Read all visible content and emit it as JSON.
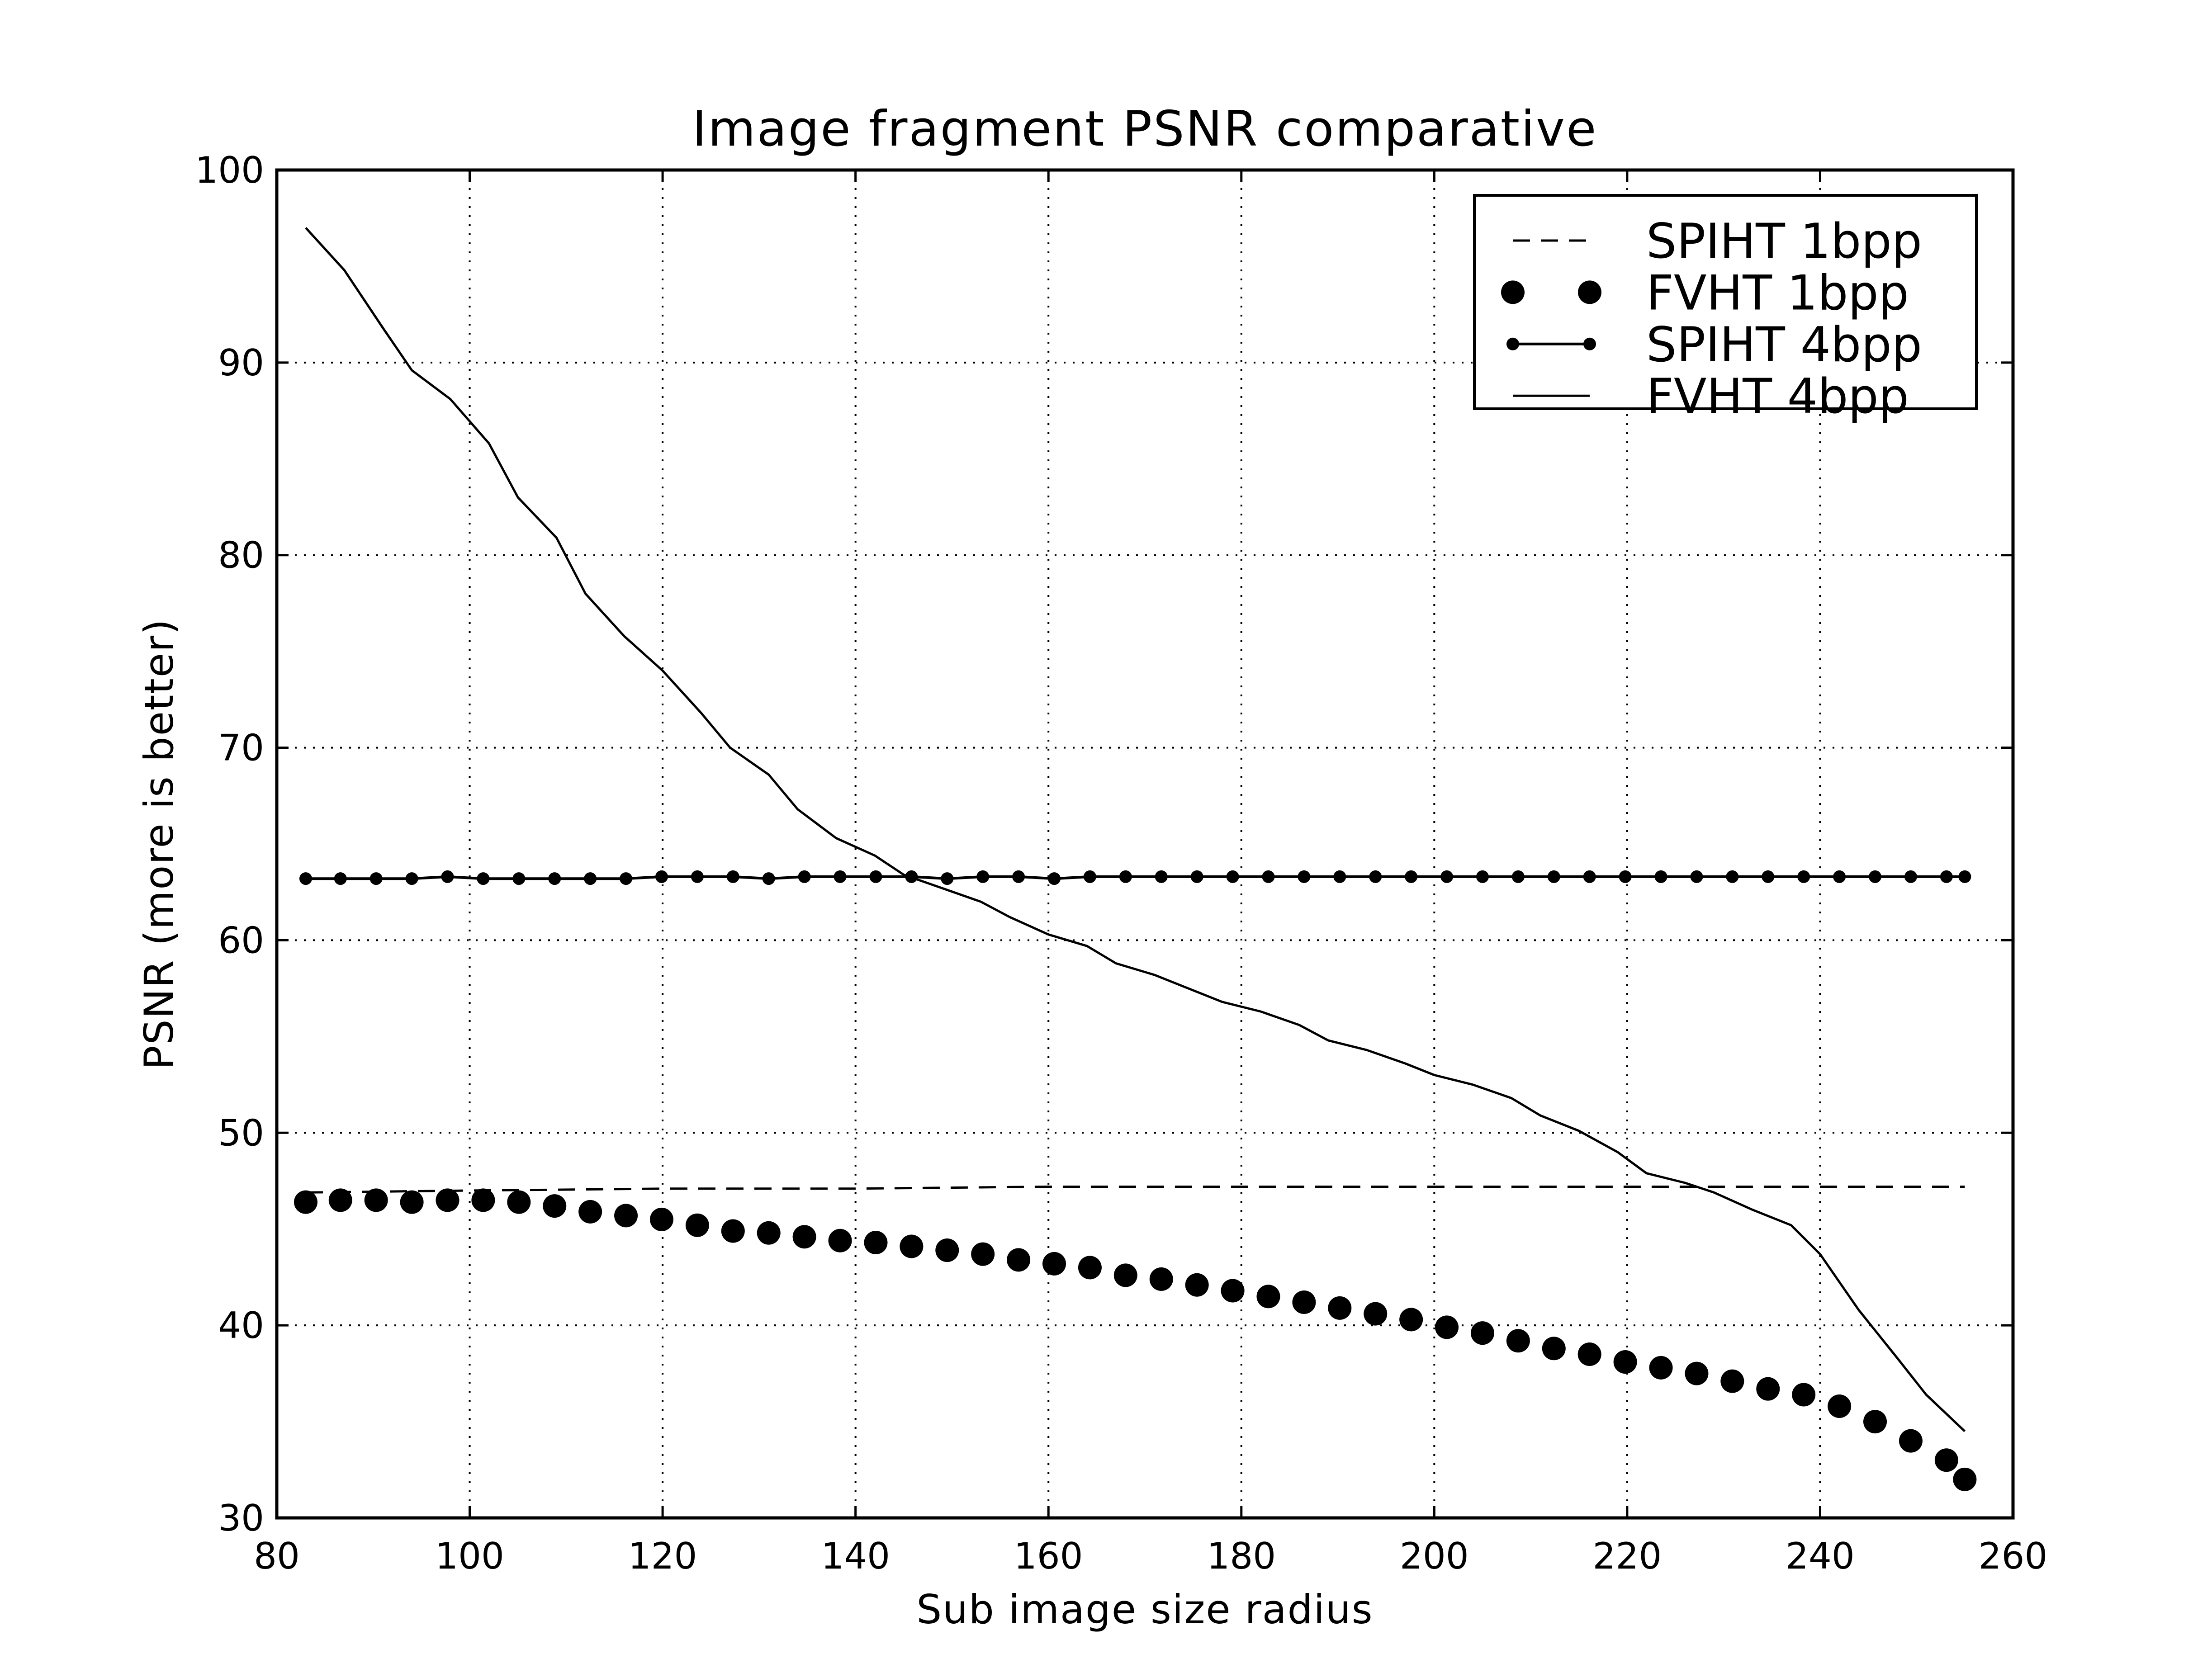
{
  "chart_data": {
    "type": "line",
    "title": "Image fragment PSNR comparative",
    "xlabel": "Sub image size radius",
    "ylabel": "PSNR (more is better)",
    "xlim": [
      80,
      260
    ],
    "ylim": [
      30,
      100
    ],
    "xticks": [
      80,
      100,
      120,
      140,
      160,
      180,
      200,
      220,
      240,
      260
    ],
    "yticks": [
      30,
      40,
      50,
      60,
      70,
      80,
      90,
      100
    ],
    "grid": true,
    "legend_position": "top-right",
    "series": [
      {
        "name": "SPIHT 1bpp",
        "style": "dashed",
        "x": [
          83,
          100,
          120,
          140,
          160,
          180,
          200,
          220,
          240,
          255
        ],
        "y": [
          46.9,
          47.0,
          47.1,
          47.1,
          47.2,
          47.2,
          47.2,
          47.2,
          47.2,
          47.2
        ]
      },
      {
        "name": "FVHT 1bpp",
        "style": "dots",
        "x": [
          83,
          86.6,
          90.3,
          94,
          97.7,
          101.4,
          105.1,
          108.8,
          112.5,
          116.2,
          119.9,
          123.6,
          127.3,
          131,
          134.7,
          138.4,
          142.1,
          145.8,
          149.5,
          153.2,
          156.9,
          160.6,
          164.3,
          168,
          171.7,
          175.4,
          179.1,
          182.8,
          186.5,
          190.2,
          193.9,
          197.6,
          201.3,
          205,
          208.7,
          212.4,
          216.1,
          219.8,
          223.5,
          227.2,
          230.9,
          234.6,
          238.3,
          242,
          245.7,
          249.4,
          253.1,
          255
        ],
        "y": [
          46.4,
          46.5,
          46.5,
          46.4,
          46.5,
          46.5,
          46.4,
          46.2,
          45.9,
          45.7,
          45.5,
          45.2,
          44.9,
          44.8,
          44.6,
          44.4,
          44.3,
          44.1,
          43.9,
          43.7,
          43.4,
          43.2,
          43.0,
          42.6,
          42.4,
          42.1,
          41.8,
          41.5,
          41.2,
          40.9,
          40.6,
          40.3,
          39.9,
          39.6,
          39.2,
          38.8,
          38.5,
          38.1,
          37.8,
          37.5,
          37.1,
          36.7,
          36.4,
          35.8,
          35.0,
          34.0,
          33.0,
          32.0
        ]
      },
      {
        "name": "SPIHT 4bpp",
        "style": "line-markers",
        "x": [
          83,
          86.6,
          90.3,
          94,
          97.7,
          101.4,
          105.1,
          108.8,
          112.5,
          116.2,
          119.9,
          123.6,
          127.3,
          131,
          134.7,
          138.4,
          142.1,
          145.8,
          149.5,
          153.2,
          156.9,
          160.6,
          164.3,
          168,
          171.7,
          175.4,
          179.1,
          182.8,
          186.5,
          190.2,
          193.9,
          197.6,
          201.3,
          205,
          208.7,
          212.4,
          216.1,
          219.8,
          223.5,
          227.2,
          230.9,
          234.6,
          238.3,
          242,
          245.7,
          249.4,
          253.1,
          255
        ],
        "y": [
          63.2,
          63.2,
          63.2,
          63.2,
          63.3,
          63.2,
          63.2,
          63.2,
          63.2,
          63.2,
          63.3,
          63.3,
          63.3,
          63.2,
          63.3,
          63.3,
          63.3,
          63.3,
          63.2,
          63.3,
          63.3,
          63.2,
          63.3,
          63.3,
          63.3,
          63.3,
          63.3,
          63.3,
          63.3,
          63.3,
          63.3,
          63.3,
          63.3,
          63.3,
          63.3,
          63.3,
          63.3,
          63.3,
          63.3,
          63.3,
          63.3,
          63.3,
          63.3,
          63.3,
          63.3,
          63.3,
          63.3,
          63.3
        ]
      },
      {
        "name": "FVHT 4bpp",
        "style": "solid",
        "x": [
          83,
          87,
          91,
          94,
          98,
          102,
          105,
          109,
          112,
          116,
          120,
          124,
          127,
          131,
          134,
          138,
          142,
          145,
          149,
          153,
          156,
          160,
          164,
          167,
          171,
          175,
          178,
          182,
          186,
          189,
          193,
          197,
          200,
          204,
          208,
          211,
          215,
          219,
          222,
          226,
          229,
          233,
          237,
          240,
          244,
          248,
          251,
          255
        ],
        "y": [
          97.0,
          94.8,
          91.8,
          89.6,
          88.1,
          85.8,
          83.0,
          80.9,
          78.0,
          75.8,
          74.0,
          71.8,
          70.0,
          68.6,
          66.8,
          65.3,
          64.4,
          63.4,
          62.7,
          62.0,
          61.2,
          60.3,
          59.7,
          58.8,
          58.2,
          57.4,
          56.8,
          56.3,
          55.6,
          54.8,
          54.3,
          53.6,
          53.0,
          52.5,
          51.8,
          50.9,
          50.1,
          49.0,
          47.9,
          47.4,
          46.9,
          46.0,
          45.2,
          43.7,
          40.8,
          38.3,
          36.4,
          34.5
        ]
      }
    ]
  }
}
